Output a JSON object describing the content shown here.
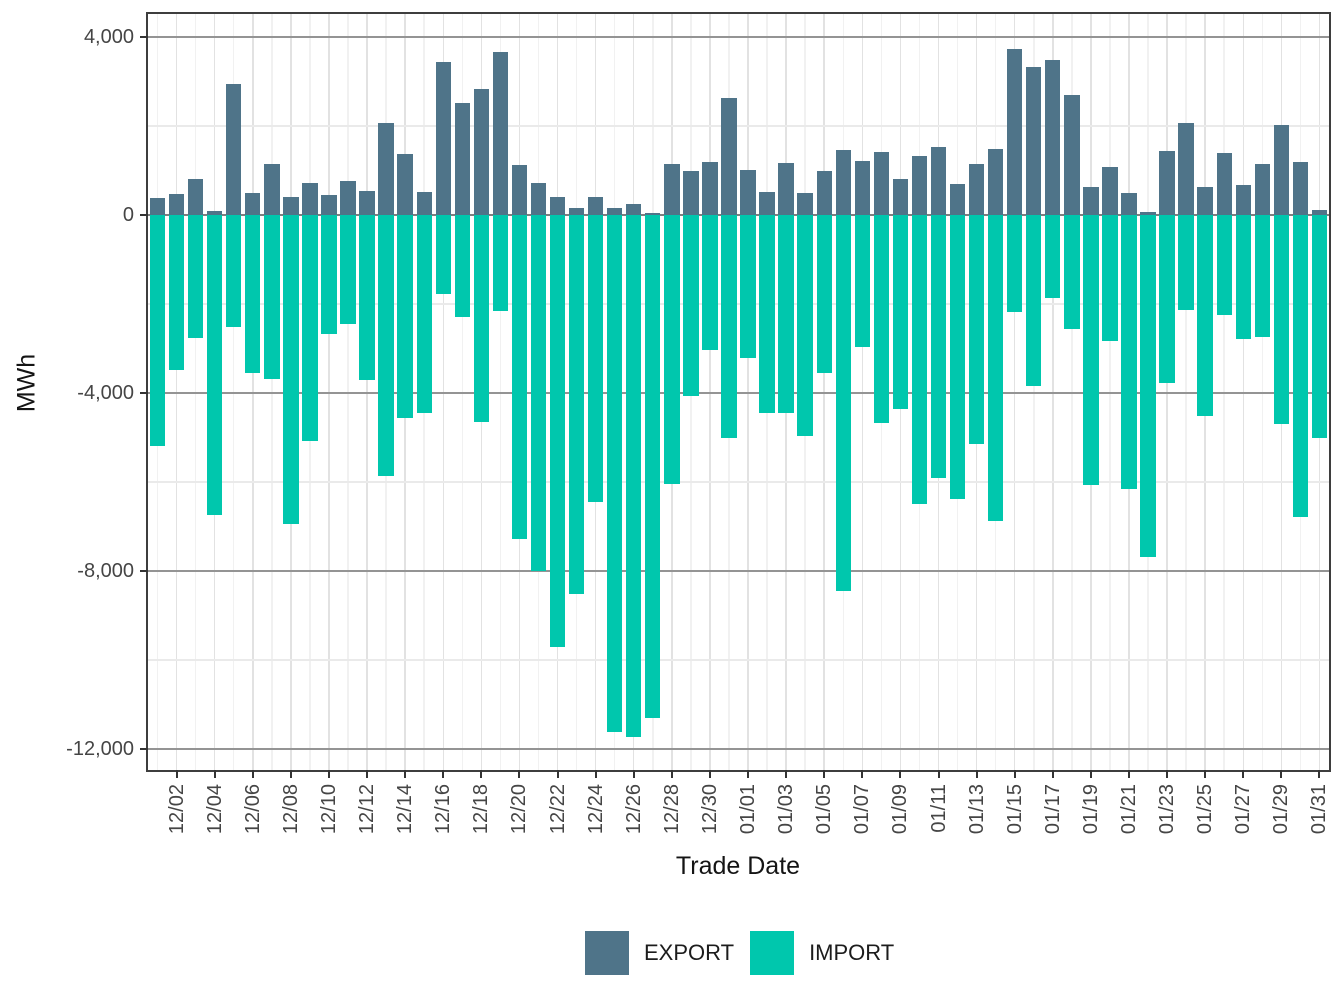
{
  "chart_data": {
    "type": "bar",
    "title": "",
    "xlabel": "Trade Date",
    "ylabel": "MWh",
    "legend_position": "bottom",
    "grid": true,
    "ylim": [
      -12470,
      4515
    ],
    "y_major_ticks": [
      {
        "label": "4,000",
        "value": 4000
      },
      {
        "label": "0",
        "value": 0
      },
      {
        "label": "-4,000",
        "value": -4000
      },
      {
        "label": "-8,000",
        "value": -8000
      },
      {
        "label": "-12,000",
        "value": -12000
      }
    ],
    "y_minor_gridlines": [
      2000,
      -2000,
      -6000,
      -10000
    ],
    "x": [
      "12/01",
      "12/02",
      "12/03",
      "12/04",
      "12/05",
      "12/06",
      "12/07",
      "12/08",
      "12/09",
      "12/10",
      "12/11",
      "12/12",
      "12/13",
      "12/14",
      "12/15",
      "12/16",
      "12/17",
      "12/18",
      "12/19",
      "12/20",
      "12/21",
      "12/22",
      "12/23",
      "12/24",
      "12/25",
      "12/26",
      "12/27",
      "12/28",
      "12/29",
      "12/30",
      "12/31",
      "01/01",
      "01/02",
      "01/03",
      "01/04",
      "01/05",
      "01/06",
      "01/07",
      "01/08",
      "01/09",
      "01/10",
      "01/11",
      "01/12",
      "01/13",
      "01/14",
      "01/15",
      "01/16",
      "01/17",
      "01/18",
      "01/19",
      "01/20",
      "01/21",
      "01/22",
      "01/23",
      "01/24",
      "01/25",
      "01/26",
      "01/27",
      "01/28",
      "01/29",
      "01/30",
      "01/31"
    ],
    "x_tick_labels": [
      "12/02",
      "12/04",
      "12/06",
      "12/08",
      "12/10",
      "12/12",
      "12/14",
      "12/16",
      "12/18",
      "12/20",
      "12/22",
      "12/24",
      "12/26",
      "12/28",
      "12/30",
      "01/01",
      "01/03",
      "01/05",
      "01/07",
      "01/09",
      "01/11",
      "01/13",
      "01/15",
      "01/17",
      "01/19",
      "01/21",
      "01/23",
      "01/25",
      "01/27",
      "01/29",
      "01/31"
    ],
    "series": [
      {
        "name": "EXPORT",
        "color": "#4F7489",
        "values": [
          375,
          465,
          810,
          100,
          2935,
          490,
          1140,
          410,
          725,
          450,
          765,
          545,
          2075,
          1370,
          525,
          3430,
          2525,
          2825,
          3670,
          1125,
          710,
          410,
          150,
          405,
          150,
          240,
          40,
          1145,
          980,
          1185,
          2635,
          1010,
          515,
          1175,
          500,
          990,
          1455,
          1205,
          1425,
          800,
          1325,
          1535,
          705,
          1140,
          1490,
          3730,
          3325,
          3480,
          2700,
          630,
          1080,
          500,
          60,
          1445,
          2075,
          630,
          1400,
          675,
          1145,
          2030,
          1190,
          110
        ]
      },
      {
        "name": "IMPORT",
        "color": "#00C7AD",
        "values": [
          -5180,
          -3480,
          -2755,
          -6750,
          -2510,
          -3560,
          -3685,
          -6945,
          -5080,
          -2675,
          -2450,
          -3710,
          -5865,
          -4570,
          -4455,
          -1780,
          -2285,
          -4660,
          -2150,
          -7290,
          -7995,
          -9715,
          -8515,
          -6455,
          -11625,
          -11720,
          -11310,
          -6045,
          -4070,
          -3035,
          -5020,
          -3220,
          -4455,
          -4440,
          -4970,
          -3545,
          -8440,
          -2960,
          -4680,
          -4365,
          -6500,
          -5915,
          -6390,
          -5150,
          -6875,
          -2170,
          -3840,
          -1870,
          -2560,
          -6065,
          -2825,
          -6165,
          -7690,
          -3770,
          -2135,
          -4510,
          -2255,
          -2795,
          -2750,
          -4695,
          -6780,
          -5020
        ]
      }
    ]
  },
  "legend": [
    {
      "label": "EXPORT",
      "color": "#4F7489"
    },
    {
      "label": "IMPORT",
      "color": "#00C7AD"
    }
  ]
}
